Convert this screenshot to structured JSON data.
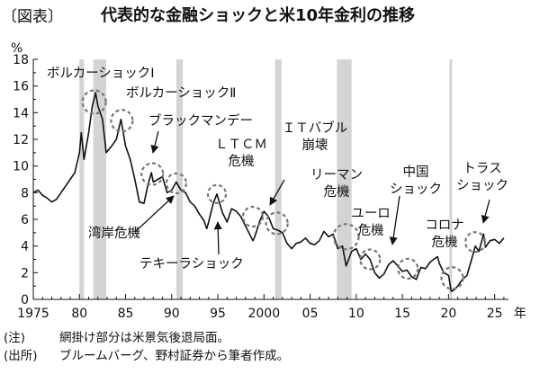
{
  "figure_label": "〔図表〕",
  "title": "代表的な金融ショックと米10年金利の推移",
  "notes": [
    {
      "lead": "(注)",
      "text": "網掛け部分は米景気後退局面。"
    },
    {
      "lead": "(出所)",
      "text": "ブルームバーグ、野村証券から筆者作成。"
    }
  ],
  "chart_data": {
    "type": "line",
    "title": "代表的な金融ショックと米10年金利の推移",
    "ylabel": "%",
    "xlabel": "年",
    "xlim": [
      1975,
      2026.5
    ],
    "ylim": [
      0,
      18
    ],
    "grid": false,
    "x_ticks": [
      1975,
      1980,
      1985,
      1990,
      1995,
      2000,
      2005,
      2010,
      2015,
      2020,
      2025
    ],
    "x_tick_labels": [
      "1975",
      "80",
      "85",
      "90",
      "95",
      "2000",
      "05",
      "10",
      "15",
      "20",
      "25"
    ],
    "y_ticks": [
      0,
      2,
      4,
      6,
      8,
      10,
      12,
      14,
      16,
      18
    ],
    "y_tick_labels": [
      "0",
      "2",
      "4",
      "6",
      "8",
      "10",
      "12",
      "14",
      "16",
      "18"
    ],
    "recessions": [
      [
        1980.0,
        1980.5
      ],
      [
        1981.5,
        1982.9
      ],
      [
        1990.5,
        1991.2
      ],
      [
        2001.2,
        2001.9
      ],
      [
        2007.9,
        2009.5
      ],
      [
        2020.1,
        2020.4
      ]
    ],
    "series": [
      {
        "x": [
          1975.0,
          1975.5,
          1976.0,
          1976.5,
          1977.0,
          1977.5,
          1978.0,
          1978.5,
          1979.0,
          1979.5,
          1980.0,
          1980.2,
          1980.5,
          1981.0,
          1981.4,
          1981.75,
          1982.0,
          1982.5,
          1982.9,
          1983.5,
          1984.0,
          1984.5,
          1985.0,
          1985.5,
          1986.0,
          1986.5,
          1987.0,
          1987.4,
          1987.8,
          1988.0,
          1988.5,
          1989.0,
          1989.5,
          1990.0,
          1990.5,
          1991.0,
          1991.5,
          1992.0,
          1992.5,
          1993.0,
          1993.5,
          1993.8,
          1994.0,
          1994.5,
          1994.9,
          1995.5,
          1996.0,
          1996.5,
          1997.0,
          1997.5,
          1998.0,
          1998.8,
          1999.0,
          1999.5,
          2000.0,
          2000.5,
          2001.0,
          2001.5,
          2002.0,
          2002.5,
          2003.0,
          2003.5,
          2004.0,
          2004.5,
          2005.0,
          2005.5,
          2006.0,
          2006.5,
          2007.0,
          2007.5,
          2008.0,
          2008.5,
          2008.9,
          2009.5,
          2010.0,
          2010.5,
          2011.0,
          2011.5,
          2012.0,
          2012.5,
          2013.0,
          2013.5,
          2014.0,
          2014.5,
          2015.0,
          2015.5,
          2016.0,
          2016.5,
          2017.0,
          2017.5,
          2018.0,
          2018.8,
          2019.0,
          2019.5,
          2020.0,
          2020.3,
          2020.6,
          2021.0,
          2021.5,
          2022.0,
          2022.5,
          2022.9,
          2023.3,
          2023.8,
          2024.0,
          2024.5,
          2025.0,
          2025.5,
          2026.0
        ],
        "values": [
          8.0,
          8.2,
          7.8,
          7.6,
          7.3,
          7.5,
          8.0,
          8.5,
          9.0,
          9.5,
          11.0,
          12.5,
          10.5,
          12.5,
          14.5,
          15.5,
          14.5,
          13.5,
          11.0,
          11.5,
          12.0,
          13.5,
          11.5,
          10.5,
          9.0,
          7.3,
          7.2,
          8.5,
          9.5,
          8.8,
          9.0,
          9.2,
          8.0,
          8.2,
          8.8,
          8.2,
          8.0,
          7.3,
          7.0,
          6.4,
          5.9,
          5.3,
          5.8,
          7.2,
          7.9,
          6.5,
          5.8,
          6.8,
          6.6,
          6.2,
          5.5,
          4.4,
          4.7,
          5.8,
          6.6,
          6.2,
          5.3,
          5.2,
          5.0,
          4.2,
          3.8,
          4.2,
          4.3,
          4.6,
          4.2,
          4.1,
          4.4,
          5.1,
          4.7,
          4.9,
          3.8,
          4.0,
          2.5,
          3.6,
          3.8,
          3.0,
          3.4,
          3.0,
          2.0,
          1.6,
          1.9,
          2.6,
          2.9,
          2.5,
          2.1,
          2.2,
          1.7,
          1.5,
          2.4,
          2.3,
          2.8,
          3.2,
          2.7,
          2.0,
          1.8,
          0.6,
          0.7,
          1.0,
          1.5,
          1.8,
          3.0,
          4.0,
          3.6,
          4.9,
          3.9,
          4.4,
          4.5,
          4.2,
          4.6
        ]
      }
    ],
    "annotations": [
      {
        "id": "volcker1",
        "text": "ボルカーショックⅠ"
      },
      {
        "id": "volcker2",
        "text": "ボルカーショックⅡ"
      },
      {
        "id": "blackmonday",
        "text": "ブラックマンデー"
      },
      {
        "id": "ltcm",
        "text": "ＬＴＣＭ\n危機"
      },
      {
        "id": "itbubble",
        "text": "ＩＴバブル\n崩壊"
      },
      {
        "id": "lehman",
        "text": "リーマン\n危機"
      },
      {
        "id": "euro",
        "text": "ユーロ\n危機"
      },
      {
        "id": "china",
        "text": "中国\nショック"
      },
      {
        "id": "covid",
        "text": "コロナ\n危機"
      },
      {
        "id": "truss",
        "text": "トラス\nショック"
      },
      {
        "id": "gulf",
        "text": "湾岸危機"
      },
      {
        "id": "tequila",
        "text": "テキーラショック"
      }
    ],
    "colors": {
      "line": "#111111",
      "recession": "#d4d4d4",
      "circle": "#777777"
    }
  }
}
